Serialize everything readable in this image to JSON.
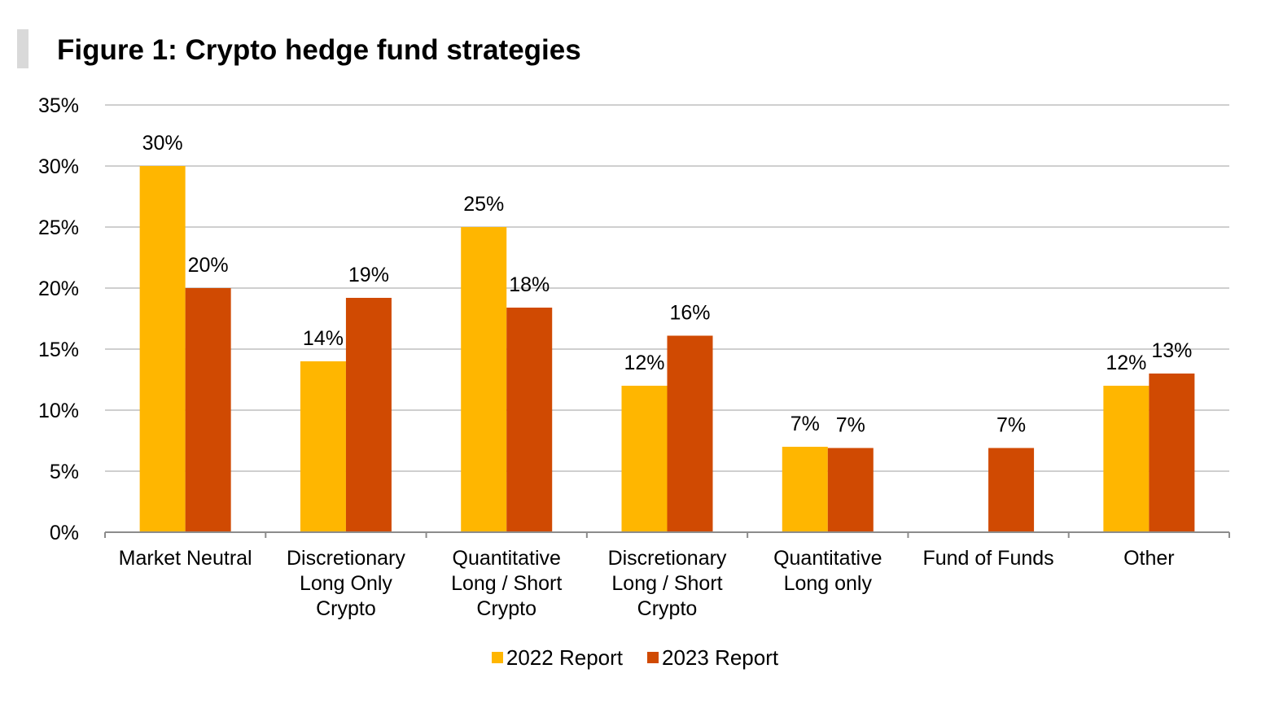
{
  "title": "Figure 1: Crypto hedge fund strategies",
  "chart_data": {
    "type": "bar",
    "categories": [
      [
        "Market Neutral"
      ],
      [
        "Discretionary",
        "Long Only",
        "Crypto"
      ],
      [
        "Quantitative",
        "Long / Short",
        "Crypto"
      ],
      [
        "Discretionary",
        "Long / Short",
        "Crypto"
      ],
      [
        "Quantitative",
        "Long only"
      ],
      [
        "Fund of Funds"
      ],
      [
        "Other"
      ]
    ],
    "series": [
      {
        "name": "2022 Report",
        "color": "#FFB600",
        "values": [
          30,
          14,
          25,
          12,
          7,
          null,
          12
        ],
        "labels": [
          "30%",
          "14%",
          "25%",
          "12%",
          "7%",
          "",
          "12%"
        ]
      },
      {
        "name": "2023 Report",
        "color": "#D04A02",
        "values": [
          20,
          19.2,
          18.4,
          16.1,
          6.9,
          6.9,
          13
        ],
        "labels": [
          "20%",
          "19%",
          "18%",
          "16%",
          "7%",
          "7%",
          "13%"
        ]
      }
    ],
    "ylim": [
      0,
      35
    ],
    "yticks": [
      0,
      5,
      10,
      15,
      20,
      25,
      30,
      35
    ],
    "ytick_labels": [
      "0%",
      "5%",
      "10%",
      "15%",
      "20%",
      "25%",
      "30%",
      "35%"
    ],
    "xlabel": "",
    "ylabel": "",
    "grid": true,
    "legend_position": "bottom"
  }
}
